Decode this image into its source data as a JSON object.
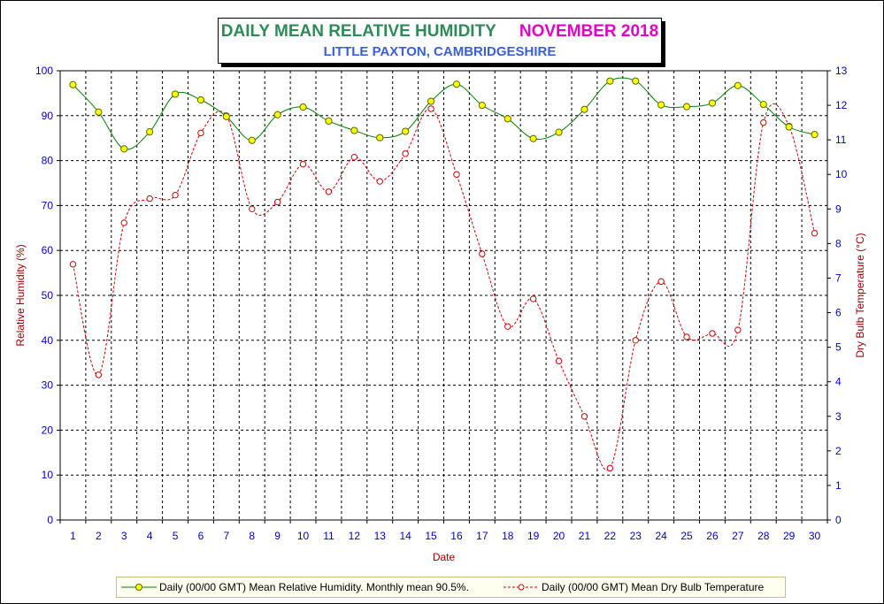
{
  "title": {
    "main": "DAILY MEAN RELATIVE HUMIDITY",
    "month": "NOVEMBER 2018",
    "subtitle": "LITTLE PAXTON, CAMBRIDGESHIRE"
  },
  "colors": {
    "title_main": "#2e8b57",
    "title_month": "#e000c8",
    "subtitle": "#3a5fd9",
    "humidity_line": "#008000",
    "humidity_marker": "#ffff00",
    "temperature_line": "#d00000",
    "axis_labels": "#0000cc",
    "axis_title": "#a00000"
  },
  "legend": {
    "humidity": "Daily (00/00 GMT) Mean Relative Humidity. Monthly mean 90.5%.",
    "temperature": "Daily (00/00 GMT) Mean Dry Bulb Temperature"
  },
  "chart_data": {
    "type": "line",
    "xlabel": "Date",
    "ylabel": "Relative Humidity (%)",
    "y2label": "Dry Bulb Temperature (°C)",
    "ylim": [
      0,
      100
    ],
    "y2lim": [
      0,
      13
    ],
    "xlim": [
      0.5,
      30.5
    ],
    "grid": true,
    "legend_position": "bottom",
    "yticks": [
      0,
      10,
      20,
      30,
      40,
      50,
      60,
      70,
      80,
      90,
      100
    ],
    "y2ticks": [
      0,
      1,
      2,
      3,
      4,
      5,
      6,
      7,
      8,
      9,
      10,
      11,
      12,
      13
    ],
    "x": [
      1,
      2,
      3,
      4,
      5,
      6,
      7,
      8,
      9,
      10,
      11,
      12,
      13,
      14,
      15,
      16,
      17,
      18,
      19,
      20,
      21,
      22,
      23,
      24,
      25,
      26,
      27,
      28,
      29,
      30
    ],
    "series": [
      {
        "name": "Daily (00/00 GMT) Mean Relative Humidity. Monthly mean 90.5%.",
        "axis": "left",
        "values": [
          96.9,
          90.8,
          82.6,
          86.4,
          94.8,
          93.5,
          89.8,
          84.5,
          90.2,
          91.9,
          88.8,
          86.7,
          85.1,
          86.5,
          93.2,
          97.0,
          92.3,
          89.3,
          84.9,
          86.3,
          91.4,
          97.7,
          97.7,
          92.4,
          92.0,
          92.8,
          96.7,
          92.5,
          87.5,
          85.8
        ]
      },
      {
        "name": "Daily (00/00 GMT) Mean Dry Bulb Temperature",
        "axis": "right",
        "values": [
          7.4,
          4.2,
          8.6,
          9.3,
          9.4,
          11.2,
          11.7,
          9.0,
          9.2,
          10.3,
          9.5,
          10.5,
          9.8,
          10.6,
          11.9,
          10.0,
          7.7,
          5.6,
          6.4,
          4.6,
          3.0,
          1.5,
          5.2,
          6.9,
          5.3,
          5.4,
          5.5,
          11.5,
          11.4,
          8.3
        ]
      }
    ]
  }
}
